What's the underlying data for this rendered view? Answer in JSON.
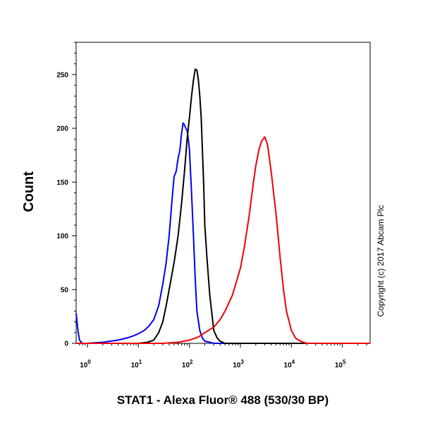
{
  "chart_data": {
    "type": "line",
    "title": "",
    "xlabel": "STAT1 - Alexa Fluor® 488 (530/30 BP)",
    "ylabel": "Count",
    "xscale": "log",
    "xlim": [
      0.6,
      350000
    ],
    "ylim": [
      0,
      280
    ],
    "y_ticks": [
      {
        "value": 0,
        "label": "0"
      },
      {
        "value": 50,
        "label": "50"
      },
      {
        "value": 100,
        "label": "100"
      },
      {
        "value": 150,
        "label": "150"
      },
      {
        "value": 200,
        "label": "200"
      },
      {
        "value": 250,
        "label": "250"
      }
    ],
    "x_ticks": [
      {
        "value": 1,
        "base": "10",
        "exp": "0"
      },
      {
        "value": 10,
        "base": "10",
        "exp": "1"
      },
      {
        "value": 100,
        "base": "10",
        "exp": "2"
      },
      {
        "value": 1000,
        "base": "10",
        "exp": "3"
      },
      {
        "value": 10000,
        "base": "10",
        "exp": "4"
      },
      {
        "value": 100000,
        "base": "10",
        "exp": "5"
      }
    ],
    "grid": false,
    "legend": "none",
    "annotation": "Copyright (c) 2017 Abcam Plc",
    "series": [
      {
        "color": "#0000ee",
        "x": [
          0.6,
          0.65,
          0.7,
          0.8,
          1,
          2,
          4,
          6,
          8,
          10,
          13,
          16,
          20,
          25,
          30,
          35,
          40,
          45,
          50,
          55,
          60,
          65,
          70,
          75,
          80,
          85,
          90,
          95,
          100,
          105,
          110,
          120,
          130,
          140,
          160,
          180,
          200,
          250,
          300,
          400,
          1000,
          100000,
          350000
        ],
        "y": [
          28,
          12,
          3,
          0,
          0,
          1,
          3,
          5,
          7,
          9,
          12,
          16,
          22,
          35,
          55,
          75,
          100,
          130,
          155,
          160,
          172,
          180,
          195,
          205,
          203,
          200,
          198,
          190,
          180,
          160,
          140,
          100,
          60,
          30,
          12,
          5,
          2,
          1,
          0,
          0,
          0,
          0,
          0
        ]
      },
      {
        "color": "#000000",
        "x": [
          0.6,
          10,
          15,
          20,
          25,
          30,
          35,
          40,
          50,
          55,
          60,
          70,
          80,
          90,
          100,
          110,
          120,
          130,
          140,
          150,
          160,
          170,
          180,
          190,
          200,
          220,
          250,
          280,
          300,
          350,
          400,
          500,
          1000,
          350000
        ],
        "y": [
          0,
          0,
          1,
          3,
          10,
          20,
          35,
          50,
          75,
          88,
          100,
          130,
          160,
          190,
          210,
          230,
          245,
          255,
          254,
          245,
          230,
          210,
          180,
          150,
          110,
          80,
          45,
          25,
          12,
          5,
          2,
          0,
          0,
          0
        ]
      },
      {
        "color": "#ee0000",
        "x": [
          0.6,
          30,
          60,
          100,
          150,
          200,
          300,
          400,
          500,
          700,
          1000,
          1200,
          1500,
          1800,
          2000,
          2300,
          2600,
          3000,
          3400,
          4000,
          5000,
          6000,
          7000,
          8000,
          10000,
          12000,
          15000,
          20000,
          30000,
          50000,
          350000
        ],
        "y": [
          0,
          0,
          1,
          3,
          6,
          10,
          15,
          22,
          30,
          45,
          70,
          90,
          120,
          150,
          165,
          180,
          188,
          192,
          185,
          160,
          120,
          80,
          50,
          30,
          12,
          5,
          2,
          0,
          0,
          0,
          0
        ]
      }
    ]
  }
}
